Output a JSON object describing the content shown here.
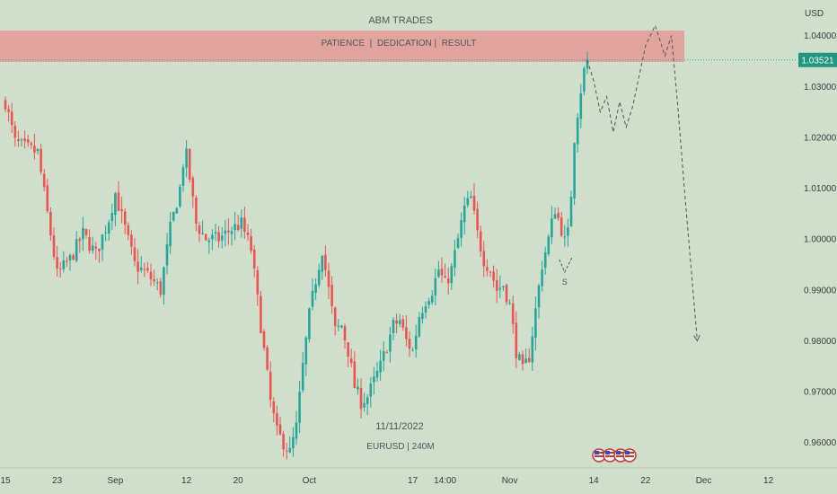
{
  "chart_data": {
    "type": "candlestick",
    "title": "ABM TRADES",
    "banner": "PATIENCE  |  DEDICATION |  RESULT",
    "symbol_label": "EURUSD | 240M",
    "date_label": "11/11/2022",
    "currency": "USD",
    "ylim": [
      0.955,
      1.047
    ],
    "grid": false,
    "y_ticks": [
      {
        "label": "1.04000",
        "value": 1.04
      },
      {
        "label": "1.03000",
        "value": 1.03
      },
      {
        "label": "1.02000",
        "value": 1.02
      },
      {
        "label": "1.01000",
        "value": 1.01
      },
      {
        "label": "1.00000",
        "value": 1.0
      },
      {
        "label": "0.99000",
        "value": 0.99
      },
      {
        "label": "0.98000",
        "value": 0.98
      },
      {
        "label": "0.97000",
        "value": 0.97
      },
      {
        "label": "0.96000",
        "value": 0.96
      }
    ],
    "x_ticks": [
      {
        "label": "15",
        "t": 0
      },
      {
        "label": "23",
        "t": 8
      },
      {
        "label": "Sep",
        "t": 17
      },
      {
        "label": "12",
        "t": 28
      },
      {
        "label": "20",
        "t": 36
      },
      {
        "label": "Oct",
        "t": 47
      },
      {
        "label": "17",
        "t": 63
      },
      {
        "label": "14:00",
        "t": 68
      },
      {
        "label": "Nov",
        "t": 78
      },
      {
        "label": "14",
        "t": 91
      },
      {
        "label": "22",
        "t": 99
      },
      {
        "label": "Dec",
        "t": 108
      },
      {
        "label": "12",
        "t": 118
      }
    ],
    "current_price": {
      "label": "1.03521",
      "value": 1.03521
    },
    "price_path": [
      [
        0,
        1.027
      ],
      [
        1.5,
        1.019
      ],
      [
        3,
        1.018
      ],
      [
        5,
        1.017
      ],
      [
        6.5,
        1.005
      ],
      [
        8,
        0.993
      ],
      [
        10,
        0.996
      ],
      [
        12,
        1.001
      ],
      [
        14,
        0.997
      ],
      [
        16,
        1.004
      ],
      [
        17,
        1.009
      ],
      [
        18.5,
        1.002
      ],
      [
        20,
        0.995
      ],
      [
        22,
        0.993
      ],
      [
        24,
        0.99
      ],
      [
        25.5,
        1.002
      ],
      [
        27,
        1.01
      ],
      [
        27.8,
        1.018
      ],
      [
        28.5,
        1.012
      ],
      [
        29.5,
        1.003
      ],
      [
        31,
        1.0
      ],
      [
        33,
        1.0
      ],
      [
        35,
        1.002
      ],
      [
        36.5,
        1.003
      ],
      [
        38,
        0.998
      ],
      [
        39,
        0.988
      ],
      [
        40,
        0.978
      ],
      [
        41,
        0.968
      ],
      [
        42,
        0.962
      ],
      [
        43,
        0.96
      ],
      [
        44,
        0.958
      ],
      [
        45,
        0.963
      ],
      [
        46,
        0.975
      ],
      [
        47,
        0.985
      ],
      [
        48,
        0.992
      ],
      [
        49,
        0.998
      ],
      [
        50,
        0.99
      ],
      [
        51,
        0.982
      ],
      [
        52,
        0.983
      ],
      [
        53,
        0.978
      ],
      [
        54,
        0.971
      ],
      [
        55,
        0.968
      ],
      [
        56,
        0.969
      ],
      [
        57,
        0.972
      ],
      [
        58,
        0.975
      ],
      [
        59,
        0.979
      ],
      [
        60,
        0.983
      ],
      [
        61,
        0.984
      ],
      [
        62,
        0.98
      ],
      [
        63,
        0.978
      ],
      [
        64,
        0.985
      ],
      [
        65,
        0.988
      ],
      [
        66,
        0.99
      ],
      [
        67,
        0.994
      ],
      [
        68,
        0.991
      ],
      [
        69,
        0.994
      ],
      [
        70,
        1.0
      ],
      [
        71,
        1.006
      ],
      [
        72,
        1.008
      ],
      [
        73,
        1.001
      ],
      [
        74,
        0.996
      ],
      [
        75,
        0.994
      ],
      [
        76,
        0.99
      ],
      [
        77,
        0.991
      ],
      [
        78,
        0.987
      ],
      [
        79,
        0.978
      ],
      [
        80,
        0.974
      ],
      [
        81,
        0.977
      ],
      [
        82,
        0.986
      ],
      [
        83,
        0.995
      ],
      [
        84,
        1.0
      ],
      [
        85,
        1.006
      ],
      [
        86,
        1.002
      ],
      [
        86.8,
        0.998
      ],
      [
        87.5,
        1.009
      ],
      [
        88,
        1.02
      ],
      [
        88.8,
        1.028
      ],
      [
        89.5,
        1.033
      ],
      [
        90,
        1.0352
      ]
    ],
    "projection": [
      [
        90,
        1.0352
      ],
      [
        91,
        1.031
      ],
      [
        92,
        1.025
      ],
      [
        93,
        1.028
      ],
      [
        94,
        1.021
      ],
      [
        95,
        1.027
      ],
      [
        96,
        1.022
      ],
      [
        97,
        1.026
      ],
      [
        98,
        1.032
      ],
      [
        99,
        1.038
      ],
      [
        100.5,
        1.042
      ],
      [
        102,
        1.036
      ],
      [
        103,
        1.04
      ],
      [
        104,
        1.026
      ],
      [
        105,
        1.01
      ],
      [
        106,
        0.995
      ],
      [
        107,
        0.98
      ]
    ],
    "s_marker": {
      "label": "S",
      "t": 86.5,
      "value": 0.9935
    }
  }
}
